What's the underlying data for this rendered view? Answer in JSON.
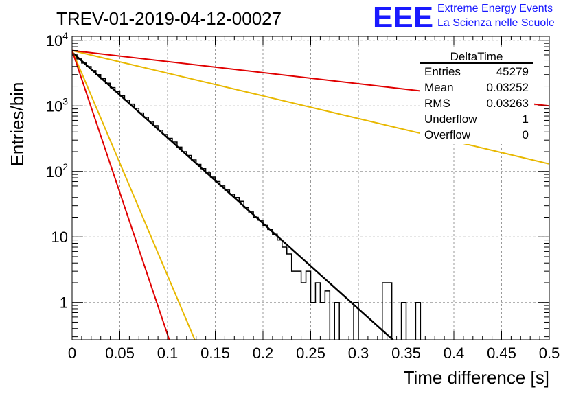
{
  "header": {
    "run_title": "TREV-01-2019-04-12-00027",
    "logo_text": "EEE",
    "logo_line1": "Extreme Energy Events",
    "logo_line2": "La Scienza nelle Scuole",
    "logo_color": "#1a1aff"
  },
  "stats_box": {
    "title": "DeltaTime",
    "rows": [
      {
        "label": "Entries",
        "value": "45279"
      },
      {
        "label": "Mean",
        "value": "0.03252"
      },
      {
        "label": "RMS",
        "value": "0.03263"
      },
      {
        "label": "Underflow",
        "value": "1"
      },
      {
        "label": "Overflow",
        "value": "0"
      }
    ]
  },
  "chart_data": {
    "type": "line",
    "xlabel": "Time difference [s]",
    "ylabel": "Entries/bin",
    "xlim": [
      0,
      0.5
    ],
    "ylim": [
      0.27,
      11500
    ],
    "log_y": true,
    "grid": true,
    "x_ticks": [
      "0",
      "0.05",
      "0.1",
      "0.15",
      "0.2",
      "0.25",
      "0.3",
      "0.35",
      "0.4",
      "0.45",
      "0.5"
    ],
    "y_ticks": [
      {
        "value": 1,
        "base": "1",
        "exp": ""
      },
      {
        "value": 10,
        "base": "10",
        "exp": ""
      },
      {
        "value": 100,
        "base": "10",
        "exp": "2"
      },
      {
        "value": 1000,
        "base": "10",
        "exp": "3"
      },
      {
        "value": 10000,
        "base": "10",
        "exp": "4"
      }
    ],
    "histogram": {
      "bin_width": 0.005,
      "color": "#000000",
      "values": [
        6000,
        5200,
        4500,
        3980,
        3450,
        3000,
        2600,
        2220,
        1900,
        1650,
        1420,
        1230,
        1065,
        920,
        780,
        670,
        582,
        500,
        425,
        365,
        320,
        280,
        235,
        200,
        175,
        150,
        128,
        110,
        95,
        82,
        70,
        60,
        52,
        45,
        40,
        35,
        28,
        24,
        20,
        18,
        15,
        13,
        11,
        9,
        7,
        5.5,
        3,
        3,
        2,
        3,
        1,
        2,
        1,
        1.5,
        0,
        1,
        0,
        0,
        0,
        1,
        0,
        0,
        0,
        0,
        0,
        2,
        2,
        0,
        0,
        1,
        0,
        0,
        1,
        0,
        0,
        0,
        0,
        0,
        0,
        0,
        0,
        0,
        0,
        0,
        0,
        0,
        0,
        0,
        0,
        0,
        0,
        0,
        0,
        0,
        0,
        0,
        0,
        0,
        0,
        0
      ]
    },
    "fits": [
      {
        "color": "#000000",
        "width": 2.5,
        "x": [
          0,
          0.34
        ],
        "y": [
          6600,
          0.24
        ]
      },
      {
        "color": "#e8b800",
        "width": 2,
        "x": [
          0,
          0.5
        ],
        "y": [
          7000,
          130
        ]
      },
      {
        "color": "#e8b800",
        "width": 2,
        "x": [
          0,
          0.13
        ],
        "y": [
          7000,
          0.24
        ]
      },
      {
        "color": "#e00000",
        "width": 2,
        "x": [
          0,
          0.5
        ],
        "y": [
          7000,
          1000
        ]
      },
      {
        "color": "#e00000",
        "width": 2,
        "x": [
          0,
          0.103
        ],
        "y": [
          7000,
          0.24
        ]
      }
    ]
  }
}
